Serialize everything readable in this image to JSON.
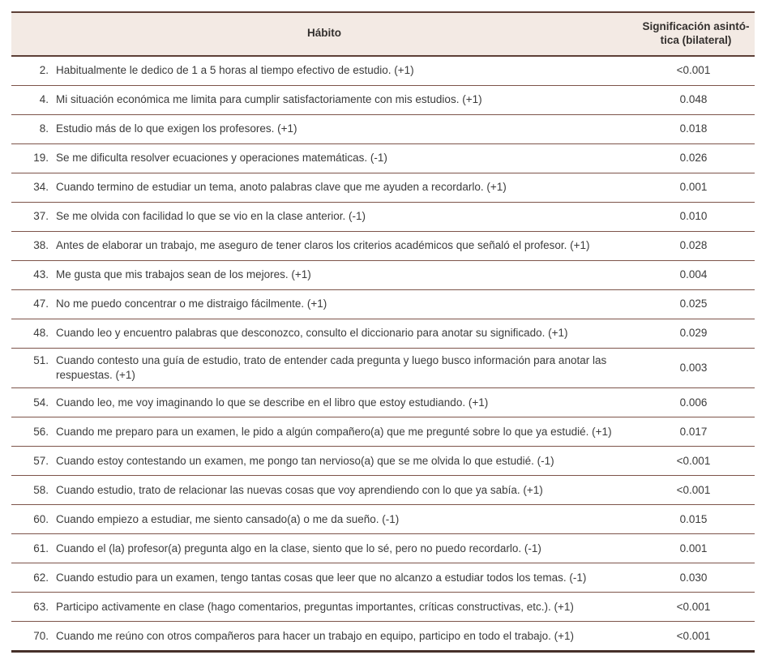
{
  "colors": {
    "header_bg": "#f3eae4",
    "rule_dark_brown": "#5d4037",
    "rule_row_brown": "#7d544a",
    "rule_bottom": "#463029",
    "text": "#3b3b3b"
  },
  "table": {
    "columns": {
      "habit_label": "Hábito",
      "sig_label": "Significación asintó-\ntica (bilateral)"
    },
    "rows": [
      {
        "num": "2.",
        "habit": "Habitualmente le dedico de 1 a 5 horas al tiempo efectivo de estudio. (+1)",
        "sig": "<0.001"
      },
      {
        "num": "4.",
        "habit": "Mi situación económica me limita para cumplir satisfactoriamente con mis estudios. (+1)",
        "sig": "0.048"
      },
      {
        "num": "8.",
        "habit": "Estudio más de lo que exigen los profesores. (+1)",
        "sig": "0.018"
      },
      {
        "num": "19.",
        "habit": "Se me dificulta resolver ecuaciones y operaciones matemáticas. (-1)",
        "sig": "0.026"
      },
      {
        "num": "34.",
        "habit": "Cuando termino de estudiar un tema, anoto palabras clave que me ayuden a recordarlo. (+1)",
        "sig": "0.001"
      },
      {
        "num": "37.",
        "habit": "Se me olvida con facilidad lo que se vio en la clase anterior. (-1)",
        "sig": "0.010"
      },
      {
        "num": "38.",
        "habit": "Antes de elaborar un trabajo, me aseguro de tener claros los criterios académicos que señaló el profesor. (+1)",
        "sig": "0.028"
      },
      {
        "num": "43.",
        "habit": "Me gusta que mis trabajos sean de los mejores. (+1)",
        "sig": "0.004"
      },
      {
        "num": "47.",
        "habit": "No me puedo concentrar o me distraigo fácilmente. (+1)",
        "sig": "0.025"
      },
      {
        "num": "48.",
        "habit": "Cuando leo y encuentro palabras que desconozco, consulto el diccionario para anotar su significado. (+1)",
        "sig": "0.029"
      },
      {
        "num": "51.",
        "habit": "Cuando contesto una guía de estudio, trato de entender cada pregunta y luego busco información para anotar las respuestas. (+1)",
        "sig": "0.003"
      },
      {
        "num": "54.",
        "habit": "Cuando leo, me voy imaginando lo que se describe en el libro que estoy estudiando. (+1)",
        "sig": "0.006"
      },
      {
        "num": "56.",
        "habit": "Cuando me preparo para un examen, le pido a algún compañero(a) que me pregunté sobre lo que ya estudié. (+1)",
        "sig": "0.017"
      },
      {
        "num": "57.",
        "habit": "Cuando estoy contestando un examen, me pongo tan nervioso(a) que se me olvida lo que estudié. (-1)",
        "sig": "<0.001"
      },
      {
        "num": "58.",
        "habit": "Cuando estudio, trato de relacionar las nuevas cosas que voy aprendiendo con lo que ya sabía. (+1)",
        "sig": "<0.001"
      },
      {
        "num": "60.",
        "habit": "Cuando empiezo a estudiar, me siento cansado(a) o me da sueño. (-1)",
        "sig": "0.015"
      },
      {
        "num": "61.",
        "habit": "Cuando el (la) profesor(a) pregunta algo en la clase, siento que lo sé, pero no puedo recordarlo. (-1)",
        "sig": "0.001"
      },
      {
        "num": "62.",
        "habit": "Cuando estudio para un examen, tengo tantas cosas que leer que no alcanzo a estudiar todos los temas. (-1)",
        "sig": "0.030"
      },
      {
        "num": "63.",
        "habit": "Participo activamente en clase (hago comentarios, preguntas importantes, críticas constructivas, etc.). (+1)",
        "sig": "<0.001"
      },
      {
        "num": "70.",
        "habit": "Cuando me reúno con otros compañeros para hacer un trabajo en equipo, participo en todo el trabajo. (+1)",
        "sig": "<0.001"
      }
    ]
  }
}
